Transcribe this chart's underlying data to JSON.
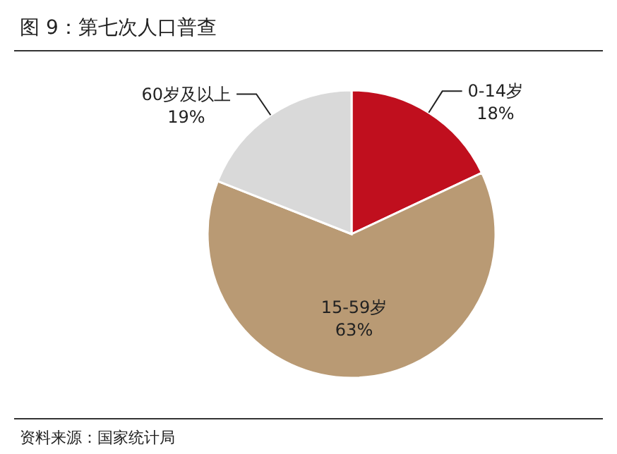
{
  "chart_data": {
    "type": "pie",
    "title": "图 9：第七次人口普查",
    "categories": [
      "0-14岁",
      "15-59岁",
      "60岁及以上"
    ],
    "values": [
      18,
      63,
      19
    ],
    "colors": [
      "#c00f1e",
      "#b99a74",
      "#d9d9d9"
    ],
    "value_labels": [
      "18%",
      "63%",
      "19%"
    ],
    "annotations": [
      "资料来源：国家统计局"
    ]
  }
}
